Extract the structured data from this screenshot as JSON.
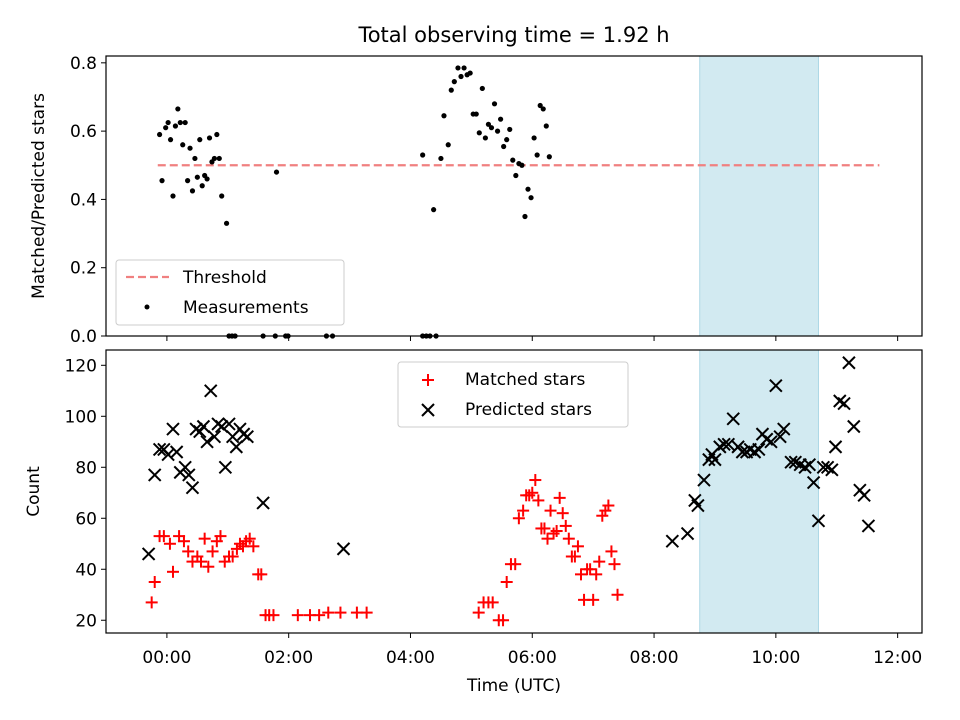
{
  "chart_data": {
    "type": "scatter",
    "title": "Total observing time = 1.92 h",
    "xlabel": "Time (UTC)",
    "xlim": [
      -1.0,
      12.4
    ],
    "xticks": [
      {
        "v": 0,
        "label": "00:00"
      },
      {
        "v": 2,
        "label": "02:00"
      },
      {
        "v": 4,
        "label": "04:00"
      },
      {
        "v": 6,
        "label": "06:00"
      },
      {
        "v": 8,
        "label": "08:00"
      },
      {
        "v": 10,
        "label": "10:00"
      },
      {
        "v": 12,
        "label": "12:00"
      }
    ],
    "highlight_span": [
      8.75,
      10.7
    ],
    "highlight_color": "#add8e6",
    "panels": [
      {
        "ylabel": "Matched/Predicted stars",
        "ylim": [
          0.0,
          0.82
        ],
        "yticks": [
          {
            "v": 0.0,
            "label": "0.0"
          },
          {
            "v": 0.2,
            "label": "0.2"
          },
          {
            "v": 0.4,
            "label": "0.4"
          },
          {
            "v": 0.6,
            "label": "0.6"
          },
          {
            "v": 0.8,
            "label": "0.8"
          }
        ],
        "threshold": {
          "name": "Threshold",
          "y": 0.5,
          "x": [
            -0.15,
            11.7
          ],
          "color": "#f08080"
        },
        "measurements": {
          "name": "Measurements",
          "color": "#000000",
          "points": [
            [
              -0.12,
              0.59
            ],
            [
              -0.08,
              0.455
            ],
            [
              -0.02,
              0.61
            ],
            [
              0.02,
              0.625
            ],
            [
              0.06,
              0.575
            ],
            [
              0.1,
              0.41
            ],
            [
              0.14,
              0.615
            ],
            [
              0.18,
              0.665
            ],
            [
              0.22,
              0.625
            ],
            [
              0.26,
              0.56
            ],
            [
              0.3,
              0.625
            ],
            [
              0.34,
              0.455
            ],
            [
              0.38,
              0.55
            ],
            [
              0.42,
              0.425
            ],
            [
              0.46,
              0.52
            ],
            [
              0.5,
              0.465
            ],
            [
              0.54,
              0.575
            ],
            [
              0.58,
              0.44
            ],
            [
              0.62,
              0.47
            ],
            [
              0.66,
              0.46
            ],
            [
              0.7,
              0.58
            ],
            [
              0.74,
              0.51
            ],
            [
              0.78,
              0.52
            ],
            [
              0.82,
              0.59
            ],
            [
              0.86,
              0.52
            ],
            [
              0.9,
              0.41
            ],
            [
              0.98,
              0.33
            ],
            [
              1.02,
              0.0
            ],
            [
              1.07,
              0.0
            ],
            [
              1.12,
              0.0
            ],
            [
              1.58,
              0.0
            ],
            [
              1.78,
              0.0
            ],
            [
              1.8,
              0.48
            ],
            [
              1.95,
              0.0
            ],
            [
              1.99,
              0.0
            ],
            [
              2.62,
              0.0
            ],
            [
              2.72,
              0.0
            ],
            [
              4.2,
              0.53
            ],
            [
              4.2,
              0.0
            ],
            [
              4.26,
              0.0
            ],
            [
              4.32,
              0.0
            ],
            [
              4.38,
              0.37
            ],
            [
              4.42,
              0.0
            ],
            [
              4.5,
              0.52
            ],
            [
              4.55,
              0.645
            ],
            [
              4.62,
              0.56
            ],
            [
              4.67,
              0.72
            ],
            [
              4.72,
              0.745
            ],
            [
              4.78,
              0.785
            ],
            [
              4.83,
              0.76
            ],
            [
              4.88,
              0.785
            ],
            [
              4.93,
              0.765
            ],
            [
              4.98,
              0.77
            ],
            [
              5.03,
              0.65
            ],
            [
              5.08,
              0.65
            ],
            [
              5.13,
              0.595
            ],
            [
              5.18,
              0.725
            ],
            [
              5.23,
              0.58
            ],
            [
              5.28,
              0.62
            ],
            [
              5.33,
              0.61
            ],
            [
              5.38,
              0.68
            ],
            [
              5.43,
              0.6
            ],
            [
              5.48,
              0.635
            ],
            [
              5.53,
              0.555
            ],
            [
              5.58,
              0.575
            ],
            [
              5.63,
              0.605
            ],
            [
              5.68,
              0.515
            ],
            [
              5.73,
              0.47
            ],
            [
              5.78,
              0.505
            ],
            [
              5.83,
              0.5
            ],
            [
              5.88,
              0.35
            ],
            [
              5.93,
              0.43
            ],
            [
              5.98,
              0.405
            ],
            [
              6.03,
              0.58
            ],
            [
              6.08,
              0.53
            ],
            [
              6.13,
              0.675
            ],
            [
              6.18,
              0.665
            ],
            [
              6.23,
              0.615
            ],
            [
              6.28,
              0.525
            ]
          ]
        }
      },
      {
        "ylabel": "Count",
        "ylim": [
          15,
          126
        ],
        "yticks": [
          {
            "v": 20,
            "label": "20"
          },
          {
            "v": 40,
            "label": "40"
          },
          {
            "v": 60,
            "label": "60"
          },
          {
            "v": 80,
            "label": "80"
          },
          {
            "v": 100,
            "label": "100"
          },
          {
            "v": 120,
            "label": "120"
          }
        ],
        "series": [
          {
            "name": "Matched stars",
            "marker": "+",
            "color": "#ff0000",
            "points": [
              [
                -0.25,
                27
              ],
              [
                -0.2,
                35
              ],
              [
                -0.12,
                53
              ],
              [
                -0.05,
                53
              ],
              [
                0.05,
                50
              ],
              [
                0.1,
                39
              ],
              [
                0.2,
                53
              ],
              [
                0.28,
                51
              ],
              [
                0.35,
                47
              ],
              [
                0.42,
                43
              ],
              [
                0.5,
                45
              ],
              [
                0.56,
                43
              ],
              [
                0.62,
                52
              ],
              [
                0.68,
                41
              ],
              [
                0.75,
                47
              ],
              [
                0.82,
                51
              ],
              [
                0.88,
                53
              ],
              [
                0.95,
                43
              ],
              [
                1.02,
                45
              ],
              [
                1.08,
                45
              ],
              [
                1.15,
                48
              ],
              [
                1.2,
                50
              ],
              [
                1.25,
                49
              ],
              [
                1.3,
                51
              ],
              [
                1.36,
                52
              ],
              [
                1.42,
                49
              ],
              [
                1.5,
                38
              ],
              [
                1.55,
                38
              ],
              [
                1.62,
                22
              ],
              [
                1.68,
                22
              ],
              [
                1.75,
                22
              ],
              [
                2.15,
                22
              ],
              [
                2.35,
                22
              ],
              [
                2.5,
                22
              ],
              [
                2.65,
                23
              ],
              [
                2.85,
                23
              ],
              [
                3.12,
                23
              ],
              [
                3.28,
                23
              ],
              [
                5.12,
                23
              ],
              [
                5.2,
                27
              ],
              [
                5.28,
                27
              ],
              [
                5.35,
                27
              ],
              [
                5.45,
                20
              ],
              [
                5.52,
                20
              ],
              [
                5.58,
                35
              ],
              [
                5.65,
                42
              ],
              [
                5.72,
                42
              ],
              [
                5.78,
                60
              ],
              [
                5.85,
                63
              ],
              [
                5.9,
                69
              ],
              [
                5.95,
                69
              ],
              [
                6.0,
                70
              ],
              [
                6.05,
                75
              ],
              [
                6.1,
                67
              ],
              [
                6.15,
                56
              ],
              [
                6.2,
                56
              ],
              [
                6.25,
                52
              ],
              [
                6.3,
                63
              ],
              [
                6.35,
                54
              ],
              [
                6.4,
                55
              ],
              [
                6.45,
                68
              ],
              [
                6.5,
                62
              ],
              [
                6.55,
                57
              ],
              [
                6.6,
                52
              ],
              [
                6.65,
                45
              ],
              [
                6.7,
                45
              ],
              [
                6.75,
                49
              ],
              [
                6.8,
                38
              ],
              [
                6.85,
                28
              ],
              [
                6.9,
                40
              ],
              [
                6.95,
                40
              ],
              [
                7.0,
                28
              ],
              [
                7.05,
                38
              ],
              [
                7.1,
                43
              ],
              [
                7.15,
                61
              ],
              [
                7.2,
                63
              ],
              [
                7.25,
                65
              ],
              [
                7.3,
                47
              ],
              [
                7.35,
                42
              ],
              [
                7.4,
                30
              ]
            ]
          },
          {
            "name": "Predicted stars",
            "marker": "x",
            "color": "#000000",
            "points": [
              [
                -0.3,
                46
              ],
              [
                -0.2,
                77
              ],
              [
                -0.12,
                87
              ],
              [
                -0.05,
                87
              ],
              [
                0.02,
                85
              ],
              [
                0.1,
                95
              ],
              [
                0.16,
                86
              ],
              [
                0.22,
                78
              ],
              [
                0.3,
                80
              ],
              [
                0.36,
                77
              ],
              [
                0.42,
                72
              ],
              [
                0.48,
                95
              ],
              [
                0.54,
                94
              ],
              [
                0.6,
                96
              ],
              [
                0.66,
                90
              ],
              [
                0.72,
                110
              ],
              [
                0.78,
                92
              ],
              [
                0.84,
                97
              ],
              [
                0.9,
                96
              ],
              [
                0.96,
                80
              ],
              [
                1.02,
                97
              ],
              [
                1.08,
                92
              ],
              [
                1.14,
                88
              ],
              [
                1.2,
                95
              ],
              [
                1.26,
                93
              ],
              [
                1.32,
                92
              ],
              [
                1.58,
                66
              ],
              [
                2.9,
                48
              ],
              [
                8.3,
                51
              ],
              [
                8.55,
                54
              ],
              [
                8.67,
                67
              ],
              [
                8.72,
                65
              ],
              [
                8.82,
                75
              ],
              [
                8.9,
                83
              ],
              [
                8.95,
                85
              ],
              [
                9.0,
                83
              ],
              [
                9.08,
                88
              ],
              [
                9.15,
                89
              ],
              [
                9.22,
                89
              ],
              [
                9.3,
                99
              ],
              [
                9.38,
                88
              ],
              [
                9.45,
                86
              ],
              [
                9.52,
                86
              ],
              [
                9.58,
                87
              ],
              [
                9.65,
                86
              ],
              [
                9.72,
                87
              ],
              [
                9.78,
                93
              ],
              [
                9.85,
                91
              ],
              [
                9.92,
                90
              ],
              [
                10.0,
                112
              ],
              [
                10.07,
                92
              ],
              [
                10.13,
                95
              ],
              [
                10.25,
                82
              ],
              [
                10.32,
                82
              ],
              [
                10.4,
                81
              ],
              [
                10.48,
                80
              ],
              [
                10.55,
                81
              ],
              [
                10.62,
                74
              ],
              [
                10.7,
                59
              ],
              [
                10.78,
                80
              ],
              [
                10.85,
                80
              ],
              [
                10.92,
                79
              ],
              [
                10.98,
                88
              ],
              [
                11.05,
                106
              ],
              [
                11.12,
                105
              ],
              [
                11.2,
                121
              ],
              [
                11.28,
                96
              ],
              [
                11.38,
                71
              ],
              [
                11.45,
                69
              ],
              [
                11.52,
                57
              ]
            ]
          }
        ]
      }
    ]
  }
}
